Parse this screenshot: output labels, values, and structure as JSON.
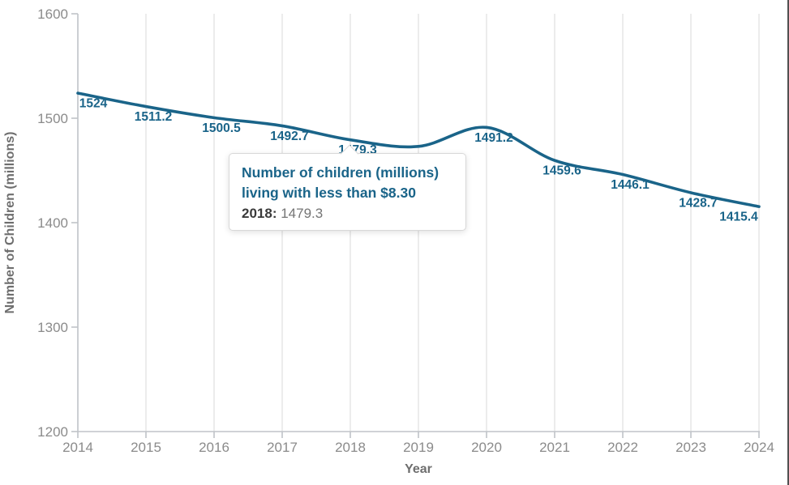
{
  "colors": {
    "line": "#1a6489",
    "data_label": "#1a6489",
    "tick_label": "#8b8b8b",
    "axis_title": "#6e6e6e",
    "axis_line": "#c0c3c8",
    "gridline": "#e4e4e4",
    "tooltip_border": "#d8d8d8",
    "tooltip_title": "#1a6489",
    "tooltip_year": "#3a3a3a",
    "tooltip_value": "#757575",
    "window_edge": "#515151",
    "background": "#ffffff"
  },
  "chart_data": {
    "type": "line",
    "title": "",
    "xlabel": "Year",
    "ylabel": "Number of Children (millions)",
    "x": [
      2014,
      2015,
      2016,
      2017,
      2018,
      2019,
      2020,
      2021,
      2022,
      2023,
      2024
    ],
    "series": [
      {
        "name": "Number of children (millions) living with less than $8.30",
        "values": [
          1524,
          1511.2,
          1500.5,
          1492.7,
          1479.3,
          1473,
          1491.2,
          1459.6,
          1446.1,
          1428.7,
          1415.4
        ]
      }
    ],
    "point_labels": [
      "1524",
      "1511.2",
      "1500.5",
      "1492.7",
      "1479.3",
      "",
      "1491.2",
      "1459.6",
      "1446.1",
      "1428.7",
      "1415.4"
    ],
    "notes": "2019 point label is hidden behind the tooltip; 2019 value estimated from curve. Curve drawn as smooth spline with slight over/undershoot.",
    "ylim": [
      1200,
      1600
    ],
    "yticks": [
      1200,
      1300,
      1400,
      1500,
      1600
    ],
    "grid": "vertical-only",
    "legend": "none"
  },
  "tooltip": {
    "title_line1": "Number of children (millions)",
    "title_line2": "living with less than $8.30",
    "year_label": "2018:",
    "value": "1479.3",
    "anchor_year": 2018
  }
}
